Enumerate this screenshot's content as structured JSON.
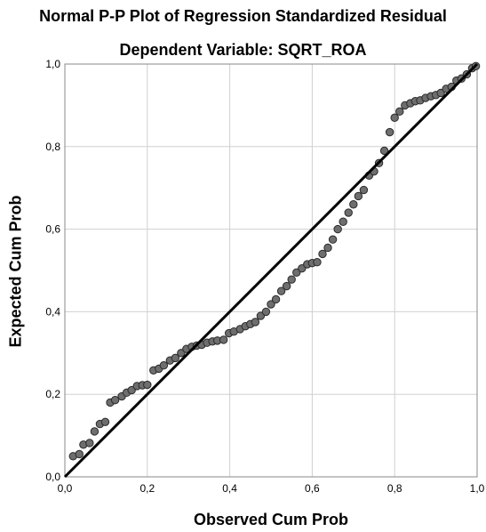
{
  "chart_data": {
    "type": "scatter",
    "title": "Normal P-P Plot of Regression Standardized Residual",
    "subtitle": "Dependent Variable: SQRT_ROA",
    "xlabel": "Observed Cum Prob",
    "ylabel": "Expected Cum Prob",
    "xlim": [
      0,
      1
    ],
    "ylim": [
      0,
      1
    ],
    "xticks": [
      "0,0",
      "0,2",
      "0,4",
      "0,6",
      "0,8",
      "1,0"
    ],
    "yticks": [
      "0,0",
      "0,2",
      "0,4",
      "0,6",
      "0,8",
      "1,0"
    ],
    "grid": true,
    "reference_line": [
      [
        0,
        0
      ],
      [
        1,
        1
      ]
    ],
    "colors": {
      "point": "#6e6e6e",
      "point_edge": "#2a2a2a",
      "line": "#000000",
      "grid": "#d0d0d0"
    },
    "points": [
      [
        0.02,
        0.05
      ],
      [
        0.035,
        0.055
      ],
      [
        0.045,
        0.078
      ],
      [
        0.06,
        0.082
      ],
      [
        0.072,
        0.11
      ],
      [
        0.085,
        0.128
      ],
      [
        0.098,
        0.133
      ],
      [
        0.11,
        0.18
      ],
      [
        0.122,
        0.186
      ],
      [
        0.138,
        0.195
      ],
      [
        0.15,
        0.204
      ],
      [
        0.162,
        0.21
      ],
      [
        0.175,
        0.22
      ],
      [
        0.188,
        0.222
      ],
      [
        0.2,
        0.223
      ],
      [
        0.215,
        0.258
      ],
      [
        0.228,
        0.262
      ],
      [
        0.24,
        0.27
      ],
      [
        0.255,
        0.282
      ],
      [
        0.268,
        0.288
      ],
      [
        0.282,
        0.3
      ],
      [
        0.295,
        0.31
      ],
      [
        0.308,
        0.315
      ],
      [
        0.32,
        0.318
      ],
      [
        0.332,
        0.32
      ],
      [
        0.345,
        0.325
      ],
      [
        0.358,
        0.328
      ],
      [
        0.37,
        0.33
      ],
      [
        0.385,
        0.332
      ],
      [
        0.398,
        0.348
      ],
      [
        0.41,
        0.352
      ],
      [
        0.425,
        0.358
      ],
      [
        0.438,
        0.365
      ],
      [
        0.45,
        0.37
      ],
      [
        0.462,
        0.375
      ],
      [
        0.475,
        0.39
      ],
      [
        0.488,
        0.4
      ],
      [
        0.5,
        0.418
      ],
      [
        0.512,
        0.43
      ],
      [
        0.525,
        0.45
      ],
      [
        0.538,
        0.462
      ],
      [
        0.55,
        0.478
      ],
      [
        0.562,
        0.495
      ],
      [
        0.575,
        0.505
      ],
      [
        0.588,
        0.515
      ],
      [
        0.6,
        0.518
      ],
      [
        0.612,
        0.52
      ],
      [
        0.625,
        0.54
      ],
      [
        0.638,
        0.555
      ],
      [
        0.65,
        0.575
      ],
      [
        0.662,
        0.6
      ],
      [
        0.675,
        0.618
      ],
      [
        0.688,
        0.64
      ],
      [
        0.7,
        0.66
      ],
      [
        0.712,
        0.68
      ],
      [
        0.725,
        0.695
      ],
      [
        0.738,
        0.73
      ],
      [
        0.75,
        0.74
      ],
      [
        0.762,
        0.76
      ],
      [
        0.775,
        0.79
      ],
      [
        0.788,
        0.835
      ],
      [
        0.8,
        0.87
      ],
      [
        0.812,
        0.885
      ],
      [
        0.825,
        0.9
      ],
      [
        0.838,
        0.905
      ],
      [
        0.85,
        0.91
      ],
      [
        0.862,
        0.912
      ],
      [
        0.875,
        0.918
      ],
      [
        0.888,
        0.922
      ],
      [
        0.9,
        0.925
      ],
      [
        0.912,
        0.93
      ],
      [
        0.925,
        0.94
      ],
      [
        0.938,
        0.945
      ],
      [
        0.95,
        0.96
      ],
      [
        0.962,
        0.965
      ],
      [
        0.975,
        0.975
      ],
      [
        0.988,
        0.99
      ],
      [
        0.997,
        0.995
      ]
    ]
  }
}
